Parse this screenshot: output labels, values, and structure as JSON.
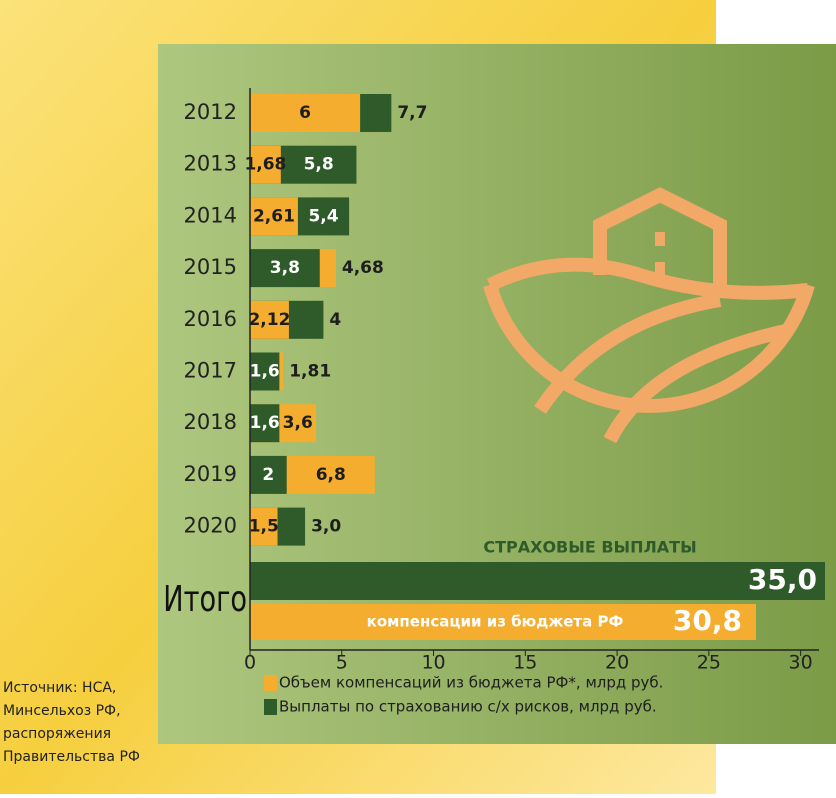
{
  "chart_data": {
    "type": "bar",
    "categories": [
      "2012",
      "2013",
      "2014",
      "2015",
      "2016",
      "2017",
      "2018",
      "2019",
      "2020"
    ],
    "series": [
      {
        "name": "Объем компенсаций из бюджета РФ*, млрд руб.",
        "color": "#f5ad2f",
        "values": [
          6,
          1.68,
          2.61,
          4.68,
          2.12,
          1.81,
          3.6,
          6.8,
          1.5
        ],
        "value_labels": [
          "6",
          "1,68",
          "2,61",
          "4,68",
          "2,12",
          "1,81",
          "3,6",
          "6,8",
          "1,5"
        ]
      },
      {
        "name": "Выплаты по страхованию с/х рисков, млрд руб.",
        "color": "#2f5a2a",
        "values": [
          7.7,
          5.8,
          5.4,
          3.8,
          4,
          1.6,
          1.6,
          2,
          3.0
        ],
        "value_labels": [
          "7,7",
          "5,8",
          "5,4",
          "3,8",
          "4",
          "1,6",
          "1,6",
          "2",
          "3,0"
        ]
      }
    ],
    "xlim": [
      0,
      31
    ],
    "xticks": [
      0,
      5,
      10,
      15,
      20,
      25,
      30
    ],
    "totals": {
      "label": "Итого",
      "title": "СТРАХОВЫЕ ВЫПЛАТЫ",
      "insurance": 35.0,
      "insurance_label": "35,0",
      "budget": 30.8,
      "budget_label": "30,8",
      "budget_caption": "компенсации из бюджета РФ"
    },
    "source": [
      "Источник: НСА,",
      "Минсельхоз РФ,",
      "распоряжения",
      "Правительства РФ"
    ]
  }
}
